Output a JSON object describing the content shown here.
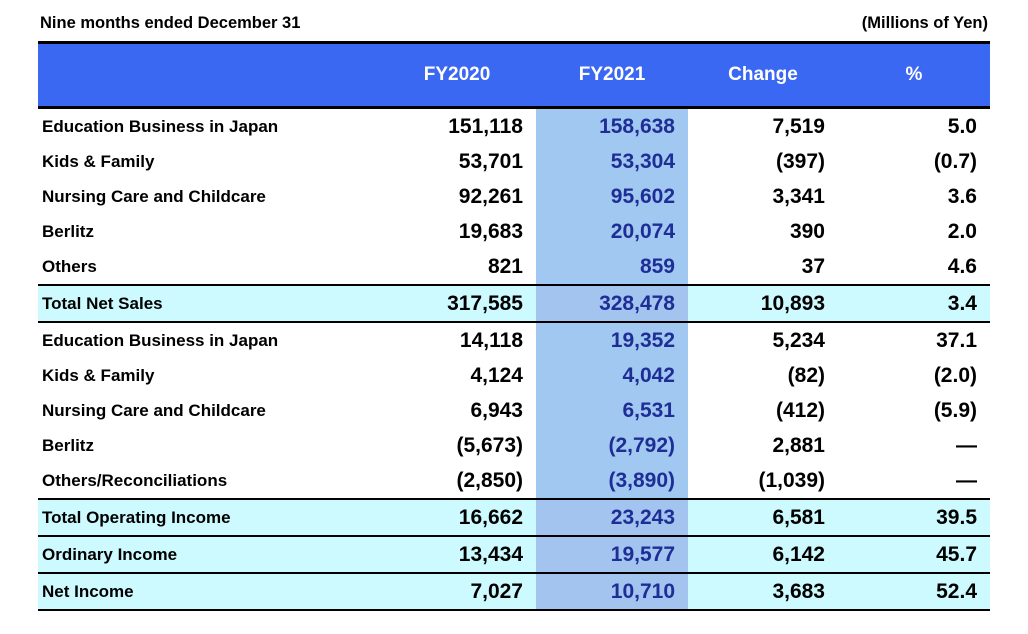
{
  "title": "Nine months ended December 31",
  "unit_note": "(Millions of Yen)",
  "colors": {
    "header_bg": "#3B68F2",
    "header_text": "#FFFFFF",
    "fy2021_col_bg": "#A0C8F0",
    "fy2021_total_bg": "#A2C4EE",
    "fy2021_text": "#1F2D96",
    "total_row_bg": "#CCFAFF",
    "body_text": "#000000"
  },
  "table": {
    "columns": [
      "",
      "FY2020",
      "FY2021",
      "Change",
      "%"
    ],
    "rows": [
      {
        "label": "Education Business in Japan",
        "fy2020": "151,118",
        "fy2021": "158,638",
        "change": "7,519",
        "pct": "5.0",
        "type": "data"
      },
      {
        "label": "Kids & Family",
        "fy2020": "53,701",
        "fy2021": "53,304",
        "change": "(397)",
        "pct": "(0.7)",
        "type": "data"
      },
      {
        "label": "Nursing Care and Childcare",
        "fy2020": "92,261",
        "fy2021": "95,602",
        "change": "3,341",
        "pct": "3.6",
        "type": "data"
      },
      {
        "label": "Berlitz",
        "fy2020": "19,683",
        "fy2021": "20,074",
        "change": "390",
        "pct": "2.0",
        "type": "data"
      },
      {
        "label": "Others",
        "fy2020": "821",
        "fy2021": "859",
        "change": "37",
        "pct": "4.6",
        "type": "data"
      },
      {
        "label": "Total Net Sales",
        "fy2020": "317,585",
        "fy2021": "328,478",
        "change": "10,893",
        "pct": "3.4",
        "type": "total"
      },
      {
        "label": "Education Business in Japan",
        "fy2020": "14,118",
        "fy2021": "19,352",
        "change": "5,234",
        "pct": "37.1",
        "type": "data"
      },
      {
        "label": "Kids & Family",
        "fy2020": "4,124",
        "fy2021": "4,042",
        "change": "(82)",
        "pct": "(2.0)",
        "type": "data"
      },
      {
        "label": "Nursing Care and Childcare",
        "fy2020": "6,943",
        "fy2021": "6,531",
        "change": "(412)",
        "pct": "(5.9)",
        "type": "data"
      },
      {
        "label": "Berlitz",
        "fy2020": "(5,673)",
        "fy2021": "(2,792)",
        "change": "2,881",
        "pct": "—",
        "type": "data"
      },
      {
        "label": "Others/Reconciliations",
        "fy2020": "(2,850)",
        "fy2021": "(3,890)",
        "change": "(1,039)",
        "pct": "—",
        "type": "data"
      },
      {
        "label": "Total Operating Income",
        "fy2020": "16,662",
        "fy2021": "23,243",
        "change": "6,581",
        "pct": "39.5",
        "type": "total"
      },
      {
        "label": "Ordinary Income",
        "fy2020": "13,434",
        "fy2021": "19,577",
        "change": "6,142",
        "pct": "45.7",
        "type": "total"
      },
      {
        "label": "Net Income",
        "fy2020": "7,027",
        "fy2021": "10,710",
        "change": "3,683",
        "pct": "52.4",
        "type": "total"
      }
    ]
  }
}
